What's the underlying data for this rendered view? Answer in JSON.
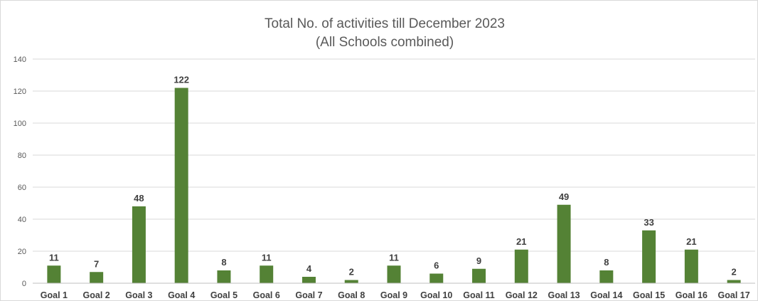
{
  "chart_data": {
    "type": "bar",
    "title": "Total No. of activities till December 2023",
    "subtitle": "(All Schools combined)",
    "categories": [
      "Goal 1",
      "Goal 2",
      "Goal 3",
      "Goal 4",
      "Goal 5",
      "Goal 6",
      "Goal 7",
      "Goal 8",
      "Goal 9",
      "Goal 10",
      "Goal 11",
      "Goal 12",
      "Goal 13",
      "Goal 14",
      "Goal 15",
      "Goal 16",
      "Goal 17"
    ],
    "values": [
      11,
      7,
      48,
      122,
      8,
      11,
      4,
      2,
      11,
      6,
      9,
      21,
      49,
      8,
      33,
      21,
      2
    ],
    "ylim": [
      0,
      140
    ],
    "yticks": [
      0,
      20,
      40,
      60,
      80,
      100,
      120,
      140
    ],
    "grid": true,
    "legend": "none",
    "bar_color": "#548235",
    "data_labels": true
  }
}
